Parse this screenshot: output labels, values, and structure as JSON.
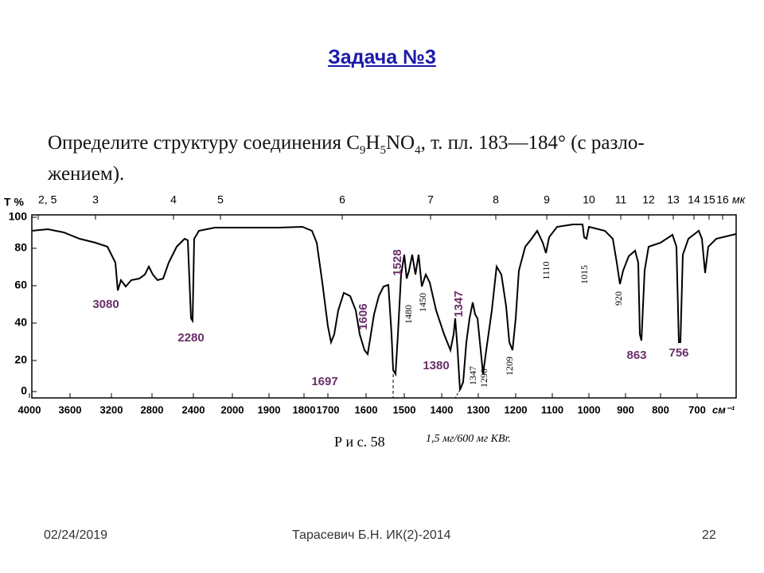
{
  "title": "Задача №3",
  "problem": {
    "parts": [
      "Определите структуру соединения C",
      "9",
      "H",
      "5",
      "NO",
      "4",
      ", т. пл. 183—184° (с разло-"
    ],
    "line2": "жением)."
  },
  "spectrum": {
    "y_axis_label": "T %",
    "y_ticks": [
      "100",
      "80",
      "60",
      "40",
      "20",
      "0"
    ],
    "top_ticks": [
      "2, 5",
      "3",
      "4",
      "5",
      "6",
      "7",
      "8",
      "9",
      "10",
      "11",
      "12",
      "13",
      "14",
      "15",
      "16"
    ],
    "top_unit": "мк",
    "bottom_ticks": [
      "4000",
      "3600",
      "3200",
      "2800",
      "2400",
      "2000",
      "1900",
      "1800",
      "1700",
      "1600",
      "1500",
      "1400",
      "1300",
      "1200",
      "1100",
      "1000",
      "900",
      "800",
      "700"
    ],
    "bottom_unit": "см⁻¹",
    "peaks_highlighted": [
      "3080",
      "2280",
      "1697",
      "1606",
      "1528",
      "1347",
      "1380",
      "863",
      "756"
    ],
    "peaks_printed": [
      "1480",
      "1450",
      "1347",
      "1290",
      "1209",
      "1110",
      "1015",
      "920"
    ]
  },
  "caption": {
    "figure": "Р и с. 58",
    "note": "1,5 мг/600 мг КВr."
  },
  "footer": {
    "date": "02/24/2019",
    "author": "Тарасевич Б.Н. ИК(2)-2014",
    "page": "22"
  }
}
